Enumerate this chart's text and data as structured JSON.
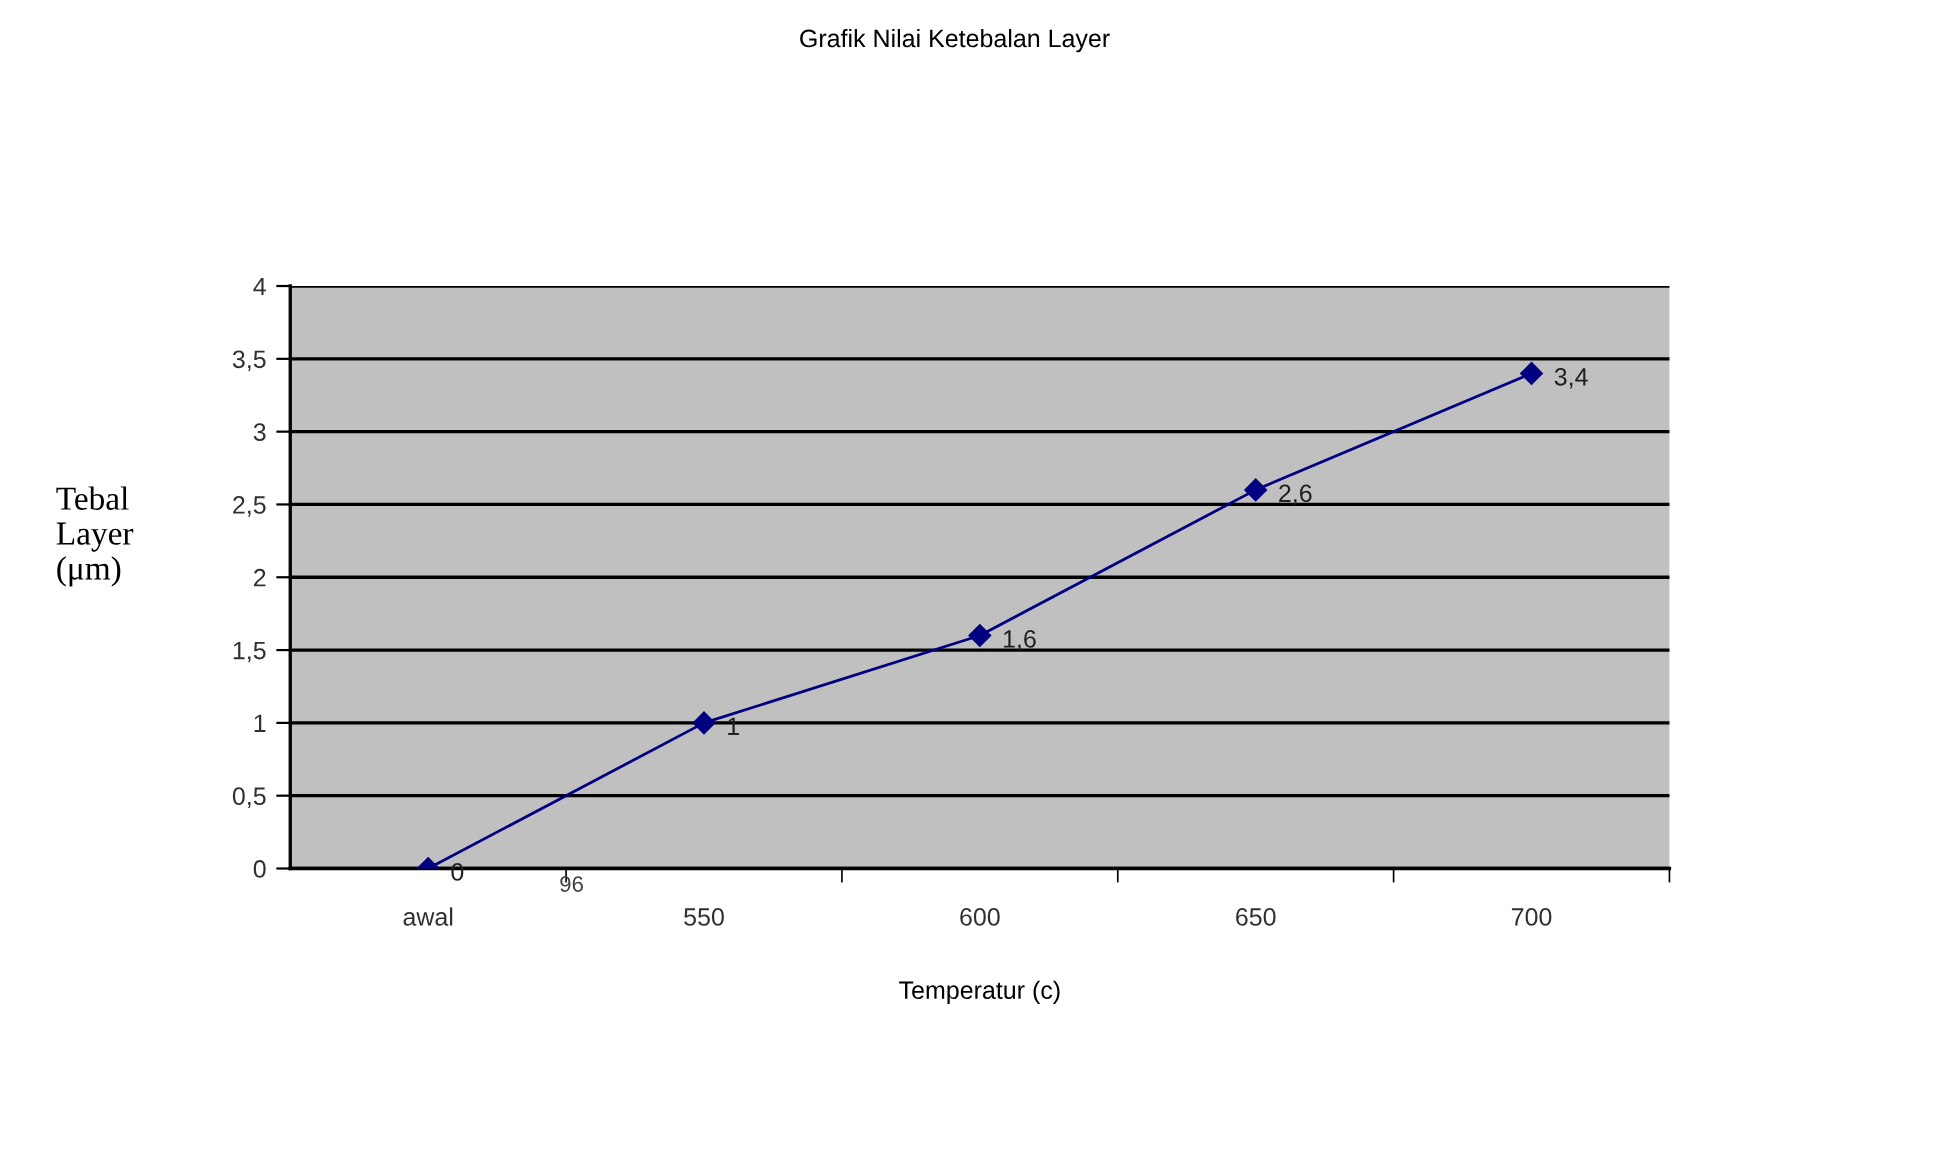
{
  "chart_data": {
    "type": "line",
    "title": "Grafik Nilai Ketebalan Layer",
    "xlabel": "Temperatur (c)",
    "ylabel": "Tebal\nLayer\n(μm)",
    "categories": [
      "awal",
      "550",
      "600",
      "650",
      "700"
    ],
    "series": [
      {
        "color": "#000080",
        "values": [
          0,
          1,
          1.6,
          2.6,
          3.4
        ],
        "value_labels": [
          "0",
          "1",
          "1,6",
          "2,6",
          "3,4"
        ]
      }
    ],
    "ylim": [
      0,
      4
    ],
    "yticks": [
      0,
      {
        "value": 0.5,
        "label": "0,5"
      },
      1,
      {
        "value": 1.5,
        "label": "1,5"
      },
      2,
      {
        "value": 2.5,
        "label": "2,5"
      },
      3,
      {
        "value": 3.5,
        "label": "3,5"
      },
      4
    ],
    "grid": "y",
    "marker": "diamond",
    "line_style": "solid",
    "legend": false,
    "annotations": [
      "96"
    ]
  }
}
